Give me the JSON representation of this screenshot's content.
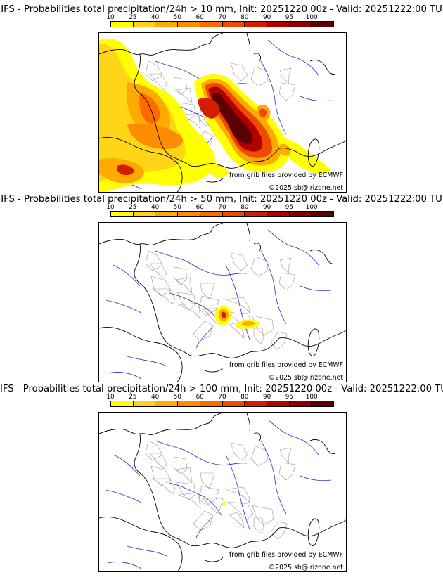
{
  "colorbar": {
    "ticks": [
      "10",
      "25",
      "40",
      "50",
      "60",
      "70",
      "80",
      "90",
      "95",
      "100"
    ],
    "colors": [
      "#ffff00",
      "#ffd21a",
      "#ffaa00",
      "#ff8c00",
      "#ff6a00",
      "#f04a00",
      "#d41c00",
      "#b00000",
      "#880000",
      "#5a0000"
    ]
  },
  "panels": [
    {
      "title": "IFS - Probabilities total precipitation/24h > 10 mm, Init: 20251220 00z - Valid: 20251222:00 TU",
      "threshold_mm": 10
    },
    {
      "title": "IFS - Probabilities total precipitation/24h > 50 mm, Init: 20251220 00z - Valid: 20251222:00 TU",
      "threshold_mm": 50
    },
    {
      "title": "IFS - Probabilities total precipitation/24h > 100 mm, Init: 20251220 00z - Valid: 20251222:00 TU",
      "threshold_mm": 100
    }
  ],
  "source_text": "from grib files provided by ECMWF",
  "copyright_text": "©2025 sb@irizone.net",
  "map_colors": {
    "coastline": "#000000",
    "rivers": "#2a2ad6",
    "admin_borders": "#9a9a9a"
  }
}
